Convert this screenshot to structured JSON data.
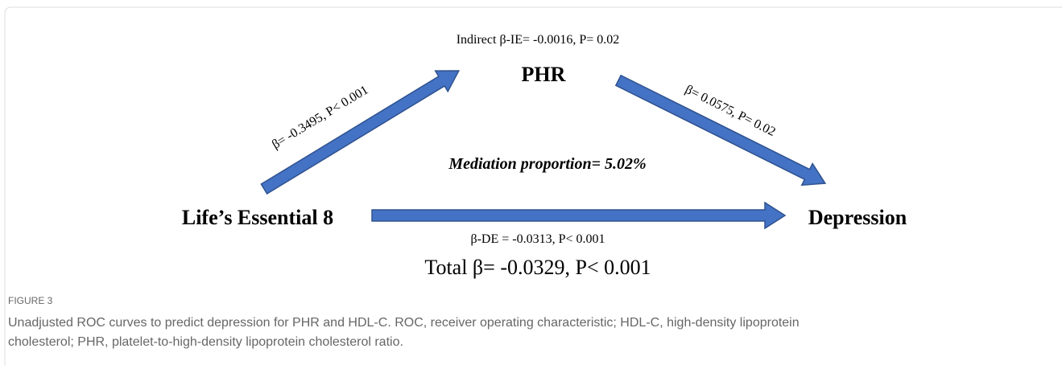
{
  "figure": {
    "indirect": "Indirect β-IE= -0.0016, P= 0.02",
    "mediator": "PHR",
    "path_a": "β= -0.3495, P< 0.001",
    "path_b": "β= 0.0575, P= 0.02",
    "proportion": "Mediation proportion= 5.02%",
    "exposure": "Life’s Essential 8",
    "outcome": "Depression",
    "direct": "β-DE = -0.0313, P< 0.001",
    "total": "Total β= -0.0329, P< 0.001"
  },
  "caption": {
    "label": "FIGURE 3",
    "lines": [
      "Unadjusted ROC curves to predict depression for PHR and HDL-C. ROC, receiver operating characteristic; HDL-C, high-density lipoprotein",
      "cholesterol; PHR, platelet-to-high-density lipoprotein cholesterol ratio."
    ]
  }
}
